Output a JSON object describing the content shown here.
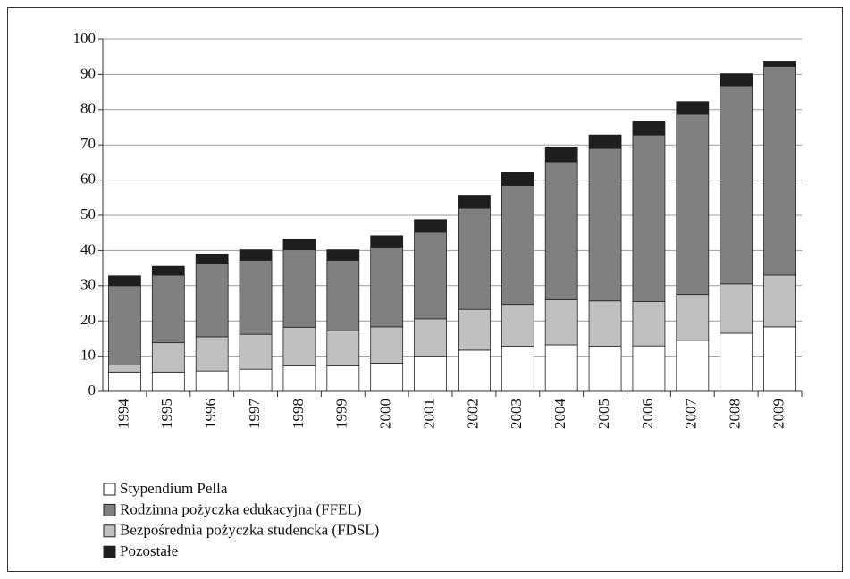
{
  "chart_data": {
    "type": "stacked_bar",
    "categories": [
      "1994",
      "1995",
      "1996",
      "1997",
      "1998",
      "1999",
      "2000",
      "2001",
      "2002",
      "2003",
      "2004",
      "2005",
      "2006",
      "2007",
      "2008",
      "2009"
    ],
    "series": [
      {
        "name": "Stypendium Pella",
        "color": "#ffffff",
        "values": [
          5.5,
          5.5,
          5.8,
          6.3,
          7.2,
          7.2,
          8,
          10,
          11.7,
          12.8,
          13.2,
          12.8,
          12.9,
          14.5,
          16.5,
          18.3
        ]
      },
      {
        "name": "Rodzinna pożyczka edukacyjna (FFEL)",
        "color": "#808080",
        "values": [
          22.5,
          19.2,
          20.8,
          21,
          22,
          20,
          22.7,
          24.6,
          28.7,
          33.8,
          39.2,
          43.3,
          47.3,
          51.2,
          56.3,
          59.3
        ]
      },
      {
        "name": "Bezpośrednia pożyczka studencka (FDSL)",
        "color": "#c0c0c0",
        "values": [
          2,
          8.3,
          9.7,
          9.9,
          11,
          10,
          10.3,
          10.6,
          11.6,
          11.9,
          12.8,
          12.9,
          12.6,
          13,
          14,
          14.7
        ]
      },
      {
        "name": "Pozostałe",
        "color": "#1e1e1e",
        "values": [
          2.8,
          2.5,
          2.7,
          3,
          3,
          3,
          3.2,
          3.6,
          3.7,
          3.8,
          4,
          3.8,
          4,
          3.6,
          3.4,
          1.5
        ]
      }
    ],
    "ylim": [
      0,
      100
    ],
    "yticks": [
      0,
      10,
      20,
      30,
      40,
      50,
      60,
      70,
      80,
      90,
      100
    ],
    "grid": true
  }
}
